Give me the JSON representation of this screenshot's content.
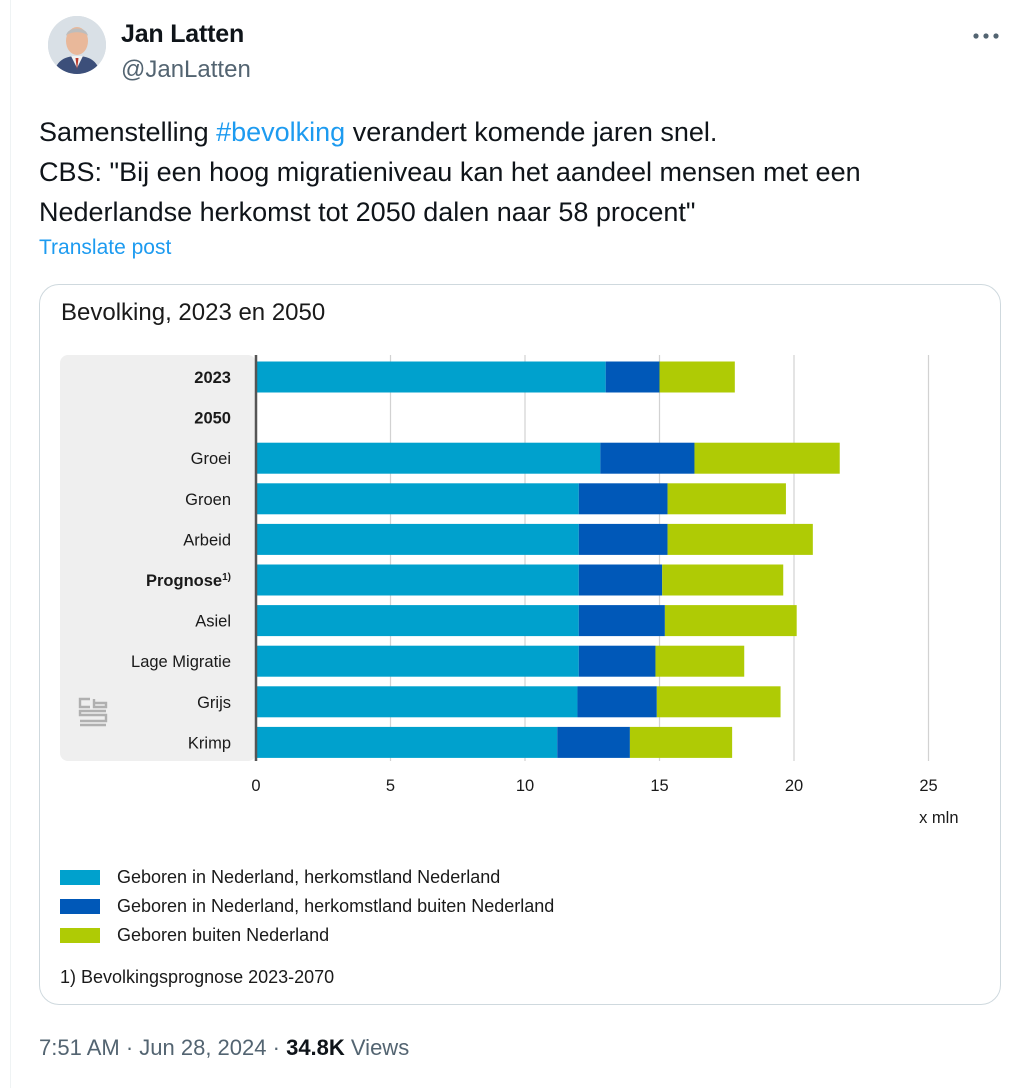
{
  "author": {
    "name": "Jan Latten",
    "handle": "@JanLatten"
  },
  "icons": {
    "more": "more-dots-icon",
    "logo": "cbs-logo-icon"
  },
  "post": {
    "text_before": "Samenstelling ",
    "hashtag": "#bevolking",
    "text_after": " verandert komende jaren snel.",
    "line2": "CBS: \"Bij een hoog migratieniveau kan het aandeel mensen met een",
    "line3": "Nederlandse herkomst tot 2050 dalen naar 58 procent\"",
    "translate_label": "Translate post"
  },
  "meta": {
    "time": "7:51 AM",
    "sep1": " · ",
    "date": "Jun 28, 2024",
    "sep2": " · ",
    "views_count": "34.8K",
    "views_label": " Views"
  },
  "colors": {
    "link": "#1d9bf0",
    "series_1": "#00a1cd",
    "series_2": "#0058b8",
    "series_3": "#afcb05"
  },
  "chart_data": {
    "type": "bar",
    "orientation": "horizontal",
    "stacked": true,
    "title": "Bevolking, 2023 en 2050",
    "xlabel": "x mln",
    "ylabel": "",
    "xlim": [
      0,
      25
    ],
    "xticks": [
      "0",
      "5",
      "10",
      "15",
      "20",
      "25"
    ],
    "grid": true,
    "legend_position": "bottom",
    "categories": [
      "2023",
      "2050",
      "Groei",
      "Groen",
      "Arbeid",
      "Prognose",
      "Asiel",
      "Lage Migratie",
      "Grijs",
      "Krimp"
    ],
    "category_suffix": {
      "Prognose": "1)"
    },
    "bold_categories": [
      "2023",
      "2050",
      "Prognose"
    ],
    "series": [
      {
        "name": "Geboren in Nederland, herkomstland Nederland",
        "color": "#00a1cd",
        "values": [
          13.0,
          null,
          12.8,
          12.0,
          12.0,
          12.0,
          12.0,
          12.0,
          11.95,
          11.2
        ]
      },
      {
        "name": "Geboren in Nederland, herkomstland buiten Nederland",
        "color": "#0058b8",
        "values": [
          2.0,
          null,
          3.5,
          3.3,
          3.3,
          3.1,
          3.2,
          2.85,
          2.95,
          2.7
        ]
      },
      {
        "name": "Geboren buiten Nederland",
        "color": "#afcb05",
        "values": [
          2.8,
          null,
          5.4,
          4.4,
          5.4,
          4.5,
          4.9,
          3.3,
          4.6,
          3.8
        ]
      }
    ],
    "footnote": "1) Bevolkingsprognose 2023-2070"
  }
}
